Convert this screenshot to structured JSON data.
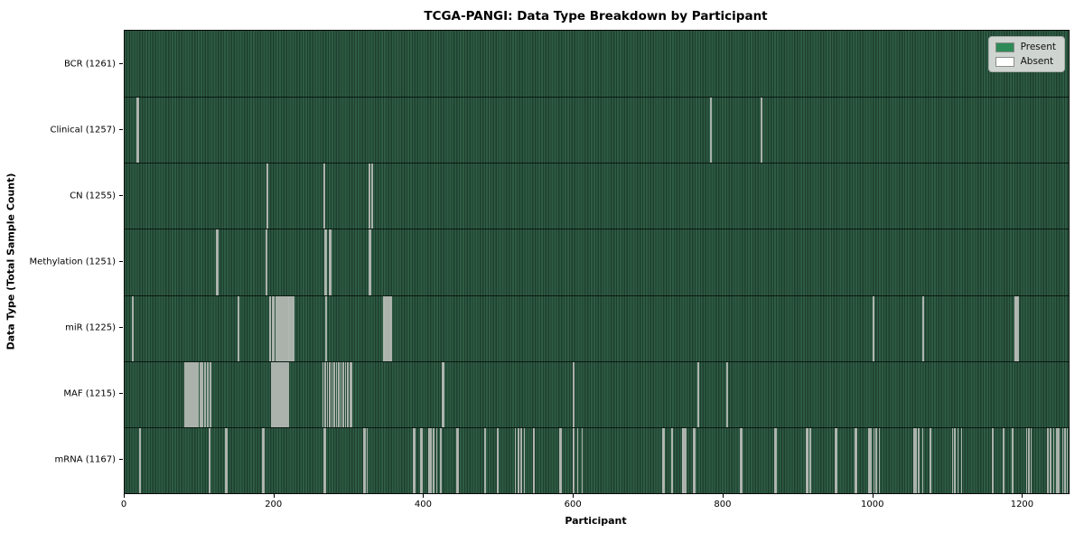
{
  "chart_data": {
    "type": "heatmap",
    "title": "TCGA-PANGI: Data Type Breakdown by Participant",
    "xlabel": "Participant",
    "ylabel": "Data Type (Total Sample Count)",
    "x_ticks": [
      0,
      200,
      400,
      600,
      800,
      1000,
      1200
    ],
    "x_range": [
      0,
      1261
    ],
    "total_participants": 1261,
    "grid": false,
    "legend_position": "upper right",
    "legend": [
      {
        "label": "Present",
        "color": "#2e8b57"
      },
      {
        "label": "Absent",
        "color": "#ffffff"
      }
    ],
    "colors": {
      "present_stripe_light": "#2e5c44",
      "present_stripe_dark": "#1e3e2e",
      "absent_line": "#b2b7b2"
    },
    "rows": [
      {
        "name": "bcr",
        "label": "BCR (1261)",
        "data_type": "BCR",
        "present_count": 1261,
        "absent_count": 0,
        "absent_at": []
      },
      {
        "name": "clinical",
        "label": "Clinical (1257)",
        "data_type": "Clinical",
        "present_count": 1257,
        "absent_count": 4,
        "absent_at": [
          16,
          17,
          782,
          850
        ]
      },
      {
        "name": "cn",
        "label": "CN (1255)",
        "data_type": "CN",
        "present_count": 1255,
        "absent_count": 6,
        "absent_at": [
          189,
          190,
          265,
          266,
          326,
          330
        ]
      },
      {
        "name": "methylation",
        "label": "Methylation (1251)",
        "data_type": "Methylation",
        "present_count": 1251,
        "absent_count": 10,
        "absent_at": [
          122,
          123,
          188,
          189,
          267,
          268,
          273,
          274,
          326,
          327
        ]
      },
      {
        "name": "mir",
        "label": "miR (1225)",
        "data_type": "miR",
        "present_count": 1225,
        "absent_count": 36,
        "absent_at": [
          10,
          151,
          193,
          194,
          197,
          198,
          201,
          203,
          205,
          207,
          209,
          211,
          213,
          215,
          217,
          219,
          221,
          223,
          225,
          268,
          345,
          346,
          348,
          350,
          352,
          354,
          355,
          999,
          1000,
          1065,
          1066,
          1188,
          1189,
          1190,
          1191,
          1192
        ]
      },
      {
        "name": "maf",
        "label": "MAF (1215)",
        "data_type": "MAF",
        "present_count": 1215,
        "absent_count": 46,
        "absent_at": [
          80,
          82,
          84,
          86,
          88,
          90,
          92,
          94,
          97,
          100,
          103,
          106,
          110,
          114,
          196,
          198,
          200,
          202,
          204,
          206,
          208,
          210,
          212,
          214,
          216,
          218,
          264,
          267,
          270,
          273,
          276,
          279,
          282,
          285,
          288,
          291,
          294,
          297,
          300,
          302,
          424,
          425,
          599,
          765,
          766,
          804
        ]
      },
      {
        "name": "mrna",
        "label": "mRNA (1167)",
        "data_type": "mRNA",
        "present_count": 1167,
        "absent_count": 94,
        "absent_at": [
          19,
          20,
          112,
          113,
          134,
          135,
          184,
          185,
          266,
          267,
          319,
          320,
          323,
          385,
          386,
          395,
          396,
          405,
          406,
          408,
          412,
          416,
          421,
          443,
          444,
          480,
          481,
          497,
          498,
          521,
          525,
          529,
          533,
          545,
          546,
          581,
          582,
          598,
          599,
          604,
          610,
          718,
          719,
          730,
          731,
          744,
          745,
          746,
          748,
          759,
          760,
          822,
          823,
          868,
          869,
          910,
          911,
          912,
          915,
          949,
          950,
          975,
          976,
          993,
          994,
          996,
          1000,
          1003,
          1007,
          1053,
          1054,
          1056,
          1060,
          1065,
          1075,
          1076,
          1105,
          1108,
          1112,
          1117,
          1159,
          1173,
          1185,
          1204,
          1207,
          1210,
          1232,
          1236,
          1240,
          1244,
          1247,
          1252,
          1255,
          1258
        ]
      }
    ]
  }
}
